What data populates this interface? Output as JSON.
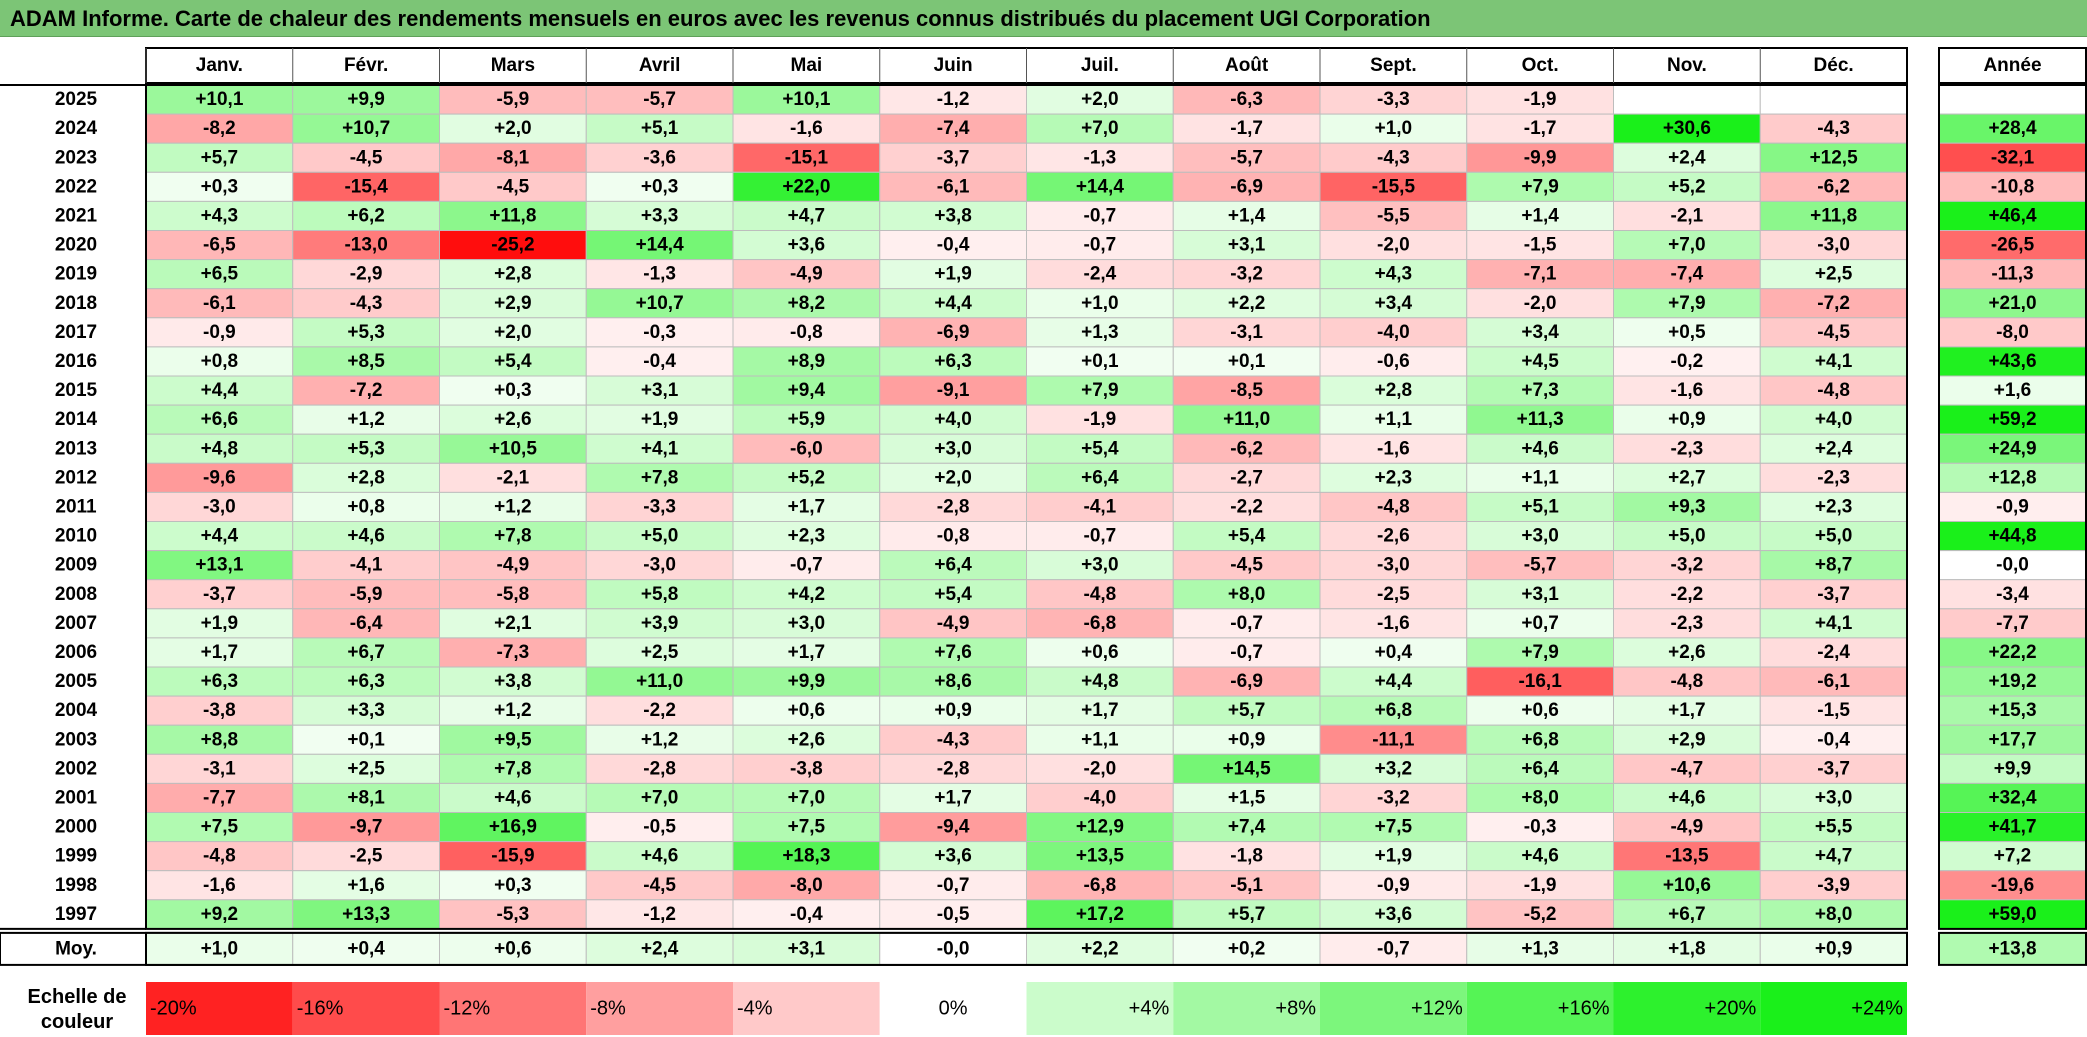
{
  "title": "ADAM Informe. Carte de chaleur des rendements mensuels en euros avec les revenus connus distribués du placement UGI Corporation",
  "chart_data": {
    "type": "heatmap",
    "months": [
      "Janv.",
      "Févr.",
      "Mars",
      "Avril",
      "Mai",
      "Juin",
      "Juil.",
      "Août",
      "Sept.",
      "Oct.",
      "Nov.",
      "Déc."
    ],
    "annual_header": "Année",
    "average_label": "Moy.",
    "rows": [
      {
        "year": "2025",
        "values": [
          10.1,
          9.9,
          -5.9,
          -5.7,
          10.1,
          -1.2,
          2.0,
          -6.3,
          -3.3,
          -1.9,
          null,
          null
        ],
        "annual": null
      },
      {
        "year": "2024",
        "values": [
          -8.2,
          10.7,
          2.0,
          5.1,
          -1.6,
          -7.4,
          7.0,
          -1.7,
          1.0,
          -1.7,
          30.6,
          -4.3
        ],
        "annual": 28.4
      },
      {
        "year": "2023",
        "values": [
          5.7,
          -4.5,
          -8.1,
          -3.6,
          -15.1,
          -3.7,
          -1.3,
          -5.7,
          -4.3,
          -9.9,
          2.4,
          12.5
        ],
        "annual": -32.1
      },
      {
        "year": "2022",
        "values": [
          0.3,
          -15.4,
          -4.5,
          0.3,
          22.0,
          -6.1,
          14.4,
          -6.9,
          -15.5,
          7.9,
          5.2,
          -6.2
        ],
        "annual": -10.8
      },
      {
        "year": "2021",
        "values": [
          4.3,
          6.2,
          11.8,
          3.3,
          4.7,
          3.8,
          -0.7,
          1.4,
          -5.5,
          1.4,
          -2.1,
          11.8
        ],
        "annual": 46.4
      },
      {
        "year": "2020",
        "values": [
          -6.5,
          -13.0,
          -25.2,
          14.4,
          3.6,
          -0.4,
          -0.7,
          3.1,
          -2.0,
          -1.5,
          7.0,
          -3.0
        ],
        "annual": -26.5
      },
      {
        "year": "2019",
        "values": [
          6.5,
          -2.9,
          2.8,
          -1.3,
          -4.9,
          1.9,
          -2.4,
          -3.2,
          4.3,
          -7.1,
          -7.4,
          2.5
        ],
        "annual": -11.3
      },
      {
        "year": "2018",
        "values": [
          -6.1,
          -4.3,
          2.9,
          10.7,
          8.2,
          4.4,
          1.0,
          2.2,
          3.4,
          -2.0,
          7.9,
          -7.2
        ],
        "annual": 21.0
      },
      {
        "year": "2017",
        "values": [
          -0.9,
          5.3,
          2.0,
          -0.3,
          -0.8,
          -6.9,
          1.3,
          -3.1,
          -4.0,
          3.4,
          0.5,
          -4.5
        ],
        "annual": -8.0
      },
      {
        "year": "2016",
        "values": [
          0.8,
          8.5,
          5.4,
          -0.4,
          8.9,
          6.3,
          0.1,
          0.1,
          -0.6,
          4.5,
          -0.2,
          4.1
        ],
        "annual": 43.6
      },
      {
        "year": "2015",
        "values": [
          4.4,
          -7.2,
          0.3,
          3.1,
          9.4,
          -9.1,
          7.9,
          -8.5,
          2.8,
          7.3,
          -1.6,
          -4.8
        ],
        "annual": 1.6
      },
      {
        "year": "2014",
        "values": [
          6.6,
          1.2,
          2.6,
          1.9,
          5.9,
          4.0,
          -1.9,
          11.0,
          1.1,
          11.3,
          0.9,
          4.0
        ],
        "annual": 59.2
      },
      {
        "year": "2013",
        "values": [
          4.8,
          5.3,
          10.5,
          4.1,
          -6.0,
          3.0,
          5.4,
          -6.2,
          -1.6,
          4.6,
          -2.3,
          2.4
        ],
        "annual": 24.9
      },
      {
        "year": "2012",
        "values": [
          -9.6,
          2.8,
          -2.1,
          7.8,
          5.2,
          2.0,
          6.4,
          -2.7,
          2.3,
          1.1,
          2.7,
          -2.3
        ],
        "annual": 12.8
      },
      {
        "year": "2011",
        "values": [
          -3.0,
          0.8,
          1.2,
          -3.3,
          1.7,
          -2.8,
          -4.1,
          -2.2,
          -4.8,
          5.1,
          9.3,
          2.3
        ],
        "annual": -0.9
      },
      {
        "year": "2010",
        "values": [
          4.4,
          4.6,
          7.8,
          5.0,
          2.3,
          -0.8,
          -0.7,
          5.4,
          -2.6,
          3.0,
          5.0,
          5.0
        ],
        "annual": 44.8
      },
      {
        "year": "2009",
        "values": [
          13.1,
          -4.1,
          -4.9,
          -3.0,
          -0.7,
          6.4,
          3.0,
          -4.5,
          -3.0,
          -5.7,
          -3.2,
          8.7
        ],
        "annual": "-0,0"
      },
      {
        "year": "2008",
        "values": [
          -3.7,
          -5.9,
          -5.8,
          5.8,
          4.2,
          5.4,
          -4.8,
          8.0,
          -2.5,
          3.1,
          -2.2,
          -3.7
        ],
        "annual": -3.4
      },
      {
        "year": "2007",
        "values": [
          1.9,
          -6.4,
          2.1,
          3.9,
          3.0,
          -4.9,
          -6.8,
          -0.7,
          -1.6,
          0.7,
          -2.3,
          4.1
        ],
        "annual": -7.7
      },
      {
        "year": "2006",
        "values": [
          1.7,
          6.7,
          -7.3,
          2.5,
          1.7,
          7.6,
          0.6,
          -0.7,
          0.4,
          7.9,
          2.6,
          -2.4
        ],
        "annual": 22.2
      },
      {
        "year": "2005",
        "values": [
          6.3,
          6.3,
          3.8,
          11.0,
          9.9,
          8.6,
          4.8,
          -6.9,
          4.4,
          -16.1,
          -4.8,
          -6.1
        ],
        "annual": 19.2
      },
      {
        "year": "2004",
        "values": [
          -3.8,
          3.3,
          1.2,
          -2.2,
          0.6,
          0.9,
          1.7,
          5.7,
          6.8,
          0.6,
          1.7,
          -1.5
        ],
        "annual": 15.3
      },
      {
        "year": "2003",
        "values": [
          8.8,
          0.1,
          9.5,
          1.2,
          2.6,
          -4.3,
          1.1,
          0.9,
          -11.1,
          6.8,
          2.9,
          -0.4
        ],
        "annual": 17.7
      },
      {
        "year": "2002",
        "values": [
          -3.1,
          2.5,
          7.8,
          -2.8,
          -3.8,
          -2.8,
          -2.0,
          14.5,
          3.2,
          6.4,
          -4.7,
          -3.7
        ],
        "annual": 9.9
      },
      {
        "year": "2001",
        "values": [
          -7.7,
          8.1,
          4.6,
          7.0,
          7.0,
          1.7,
          -4.0,
          1.5,
          -3.2,
          8.0,
          4.6,
          3.0
        ],
        "annual": 32.4
      },
      {
        "year": "2000",
        "values": [
          7.5,
          -9.7,
          16.9,
          -0.5,
          7.5,
          -9.4,
          12.9,
          7.4,
          7.5,
          -0.3,
          -4.9,
          5.5
        ],
        "annual": 41.7
      },
      {
        "year": "1999",
        "values": [
          -4.8,
          -2.5,
          -15.9,
          4.6,
          18.3,
          3.6,
          13.5,
          -1.8,
          1.9,
          4.6,
          -13.5,
          4.7
        ],
        "annual": 7.2
      },
      {
        "year": "1998",
        "values": [
          -1.6,
          1.6,
          0.3,
          -4.5,
          -8.0,
          -0.7,
          -6.8,
          -5.1,
          -0.9,
          -1.9,
          10.6,
          -3.9
        ],
        "annual": -19.6
      },
      {
        "year": "1997",
        "values": [
          9.2,
          13.3,
          -5.3,
          -1.2,
          -0.4,
          -0.5,
          17.2,
          5.7,
          3.6,
          -5.2,
          6.7,
          8.0
        ],
        "annual": 59.0
      }
    ],
    "averages": {
      "values": [
        1.0,
        0.4,
        0.6,
        2.4,
        3.1,
        "-0,0",
        2.2,
        0.2,
        -0.7,
        1.3,
        1.8,
        0.9
      ],
      "annual": 13.8
    },
    "color_scale": {
      "label_line1": "Echelle de",
      "label_line2": "couleur",
      "steps": [
        {
          "label": "-20%",
          "value": -20,
          "align": "left"
        },
        {
          "label": "-16%",
          "value": -16,
          "align": "left"
        },
        {
          "label": "-12%",
          "value": -12,
          "align": "left"
        },
        {
          "label": "-8%",
          "value": -8,
          "align": "left"
        },
        {
          "label": "-4%",
          "value": -4,
          "align": "left"
        },
        {
          "label": "0%",
          "value": 0,
          "align": "center"
        },
        {
          "label": "+4%",
          "value": 4,
          "align": "right"
        },
        {
          "label": "+8%",
          "value": 8,
          "align": "right"
        },
        {
          "label": "+12%",
          "value": 12,
          "align": "right"
        },
        {
          "label": "+16%",
          "value": 16,
          "align": "right"
        },
        {
          "label": "+20%",
          "value": 20,
          "align": "right"
        },
        {
          "label": "+24%",
          "value": 24,
          "align": "right"
        }
      ]
    },
    "colors": {
      "negative_max": "#ff0000",
      "positive_max": "#00ee00",
      "neutral": "#ffffff",
      "title_bar": "#7cc576"
    }
  }
}
